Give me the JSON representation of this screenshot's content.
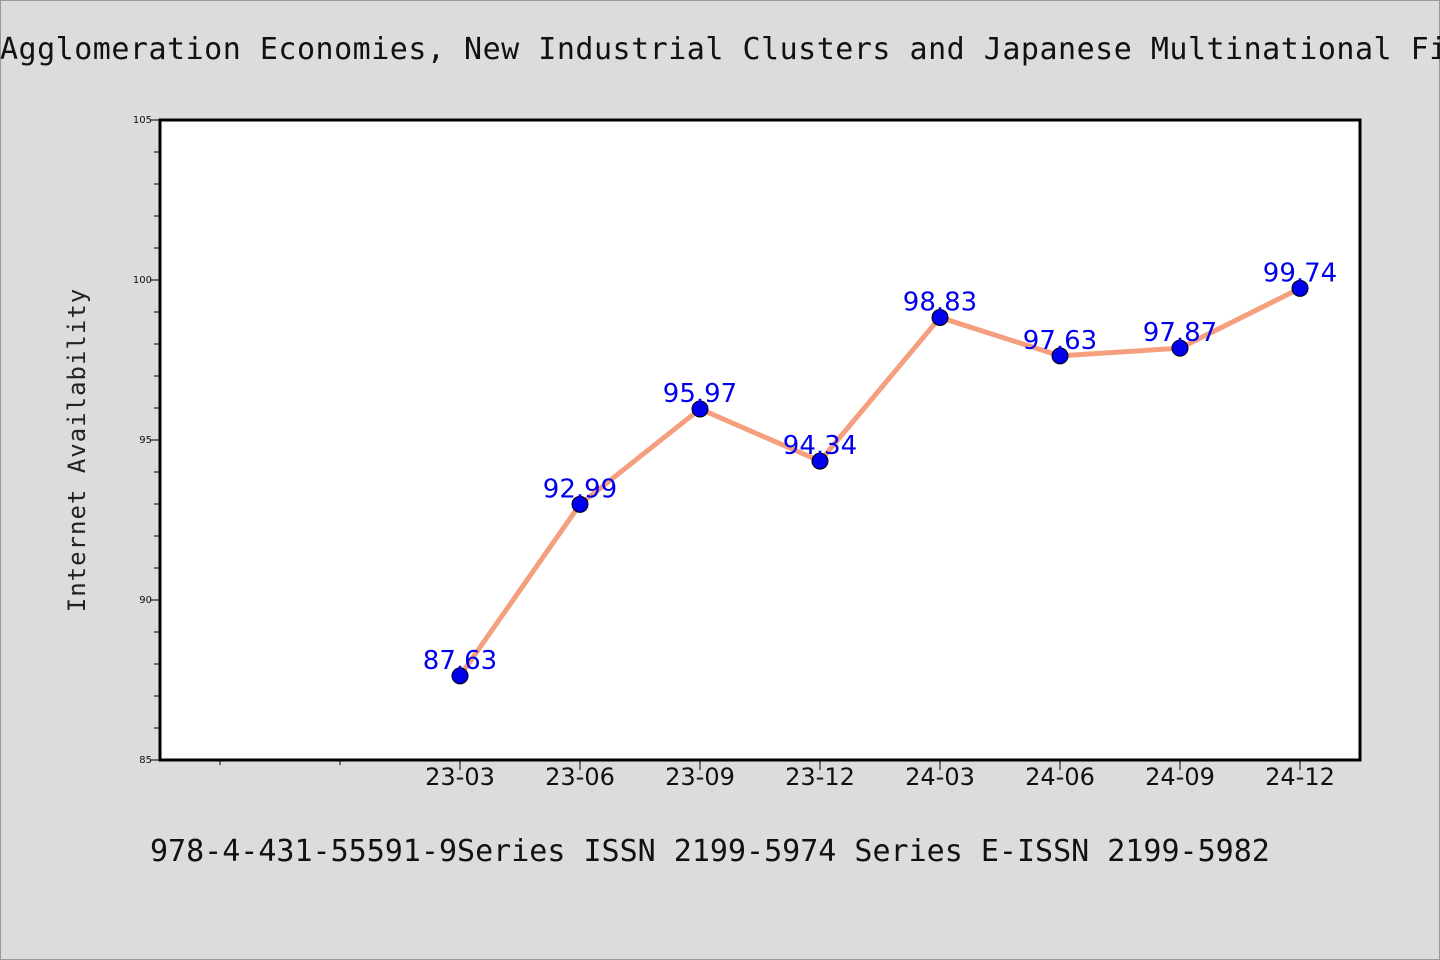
{
  "title": "Agglomeration Economies, New Industrial Clusters and Japanese Multinational Firms",
  "footer": "978-4-431-55591-9Series ISSN 2199-5974 Series E-ISSN 2199-5982",
  "chart_data": {
    "type": "line",
    "title": "Agglomeration Economies, New Industrial Clusters and Japanese Multinational Firms",
    "xlabel": "",
    "ylabel": "Internet Availability",
    "ylim": [
      85,
      105
    ],
    "yticks": [
      85,
      90,
      95,
      100,
      105
    ],
    "categories": [
      "23-03",
      "23-06",
      "23-09",
      "23-12",
      "24-03",
      "24-06",
      "24-09",
      "24-12"
    ],
    "series": [
      {
        "values": [
          87.63,
          92.99,
          95.97,
          94.34,
          98.83,
          97.63,
          97.87,
          99.74
        ]
      }
    ],
    "data_labels": [
      "87.63",
      "92.99",
      "95.97",
      "94.34",
      "98.83",
      "97.63",
      "97.87",
      "99.74"
    ],
    "grid": false,
    "legend": "none",
    "colors": {
      "line": "#f4a07f",
      "marker": "#0000ee",
      "label": "#0000ee",
      "plot_bg": "#ffffff"
    }
  }
}
